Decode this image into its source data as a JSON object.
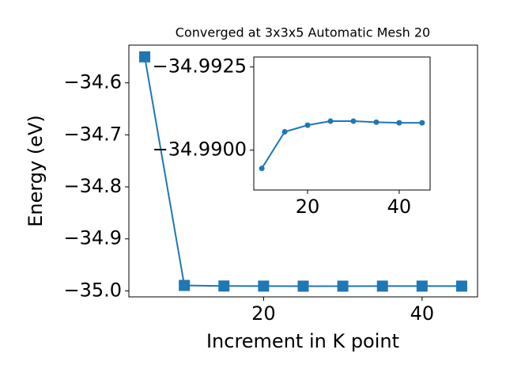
{
  "chart_data": [
    {
      "type": "line",
      "title": "Converged at 3x3x5 Automatic Mesh 20",
      "xlabel": "Increment in K point",
      "ylabel": "Energy (eV)",
      "x": [
        5,
        10,
        15,
        20,
        25,
        30,
        35,
        40,
        45
      ],
      "values": [
        -34.55,
        -34.9895,
        -34.9906,
        -34.9908,
        -34.9909,
        -34.9909,
        -34.9908,
        -34.9908,
        -34.9908
      ],
      "color": "#1f77b4",
      "marker": "square",
      "xlim": [
        3,
        47
      ],
      "xticks": [
        20,
        40
      ],
      "ylim": [
        -35.0115,
        -34.5275
      ],
      "yticks": [
        {
          "value": -34.6,
          "label": "−34.6"
        },
        {
          "value": -34.7,
          "label": "−34.7"
        },
        {
          "value": -34.8,
          "label": "−34.8"
        },
        {
          "value": -34.9,
          "label": "−34.9"
        },
        {
          "value": -35.0,
          "label": "−35.0"
        }
      ]
    },
    {
      "type": "line",
      "x": [
        10,
        15,
        20,
        25,
        30,
        35,
        40,
        45
      ],
      "values": [
        -34.98945,
        -34.99055,
        -34.99075,
        -34.99087,
        -34.99087,
        -34.99084,
        -34.99082,
        -34.99082
      ],
      "color": "#1f77b4",
      "marker": "circle",
      "xlim": [
        8.25,
        46.75
      ],
      "xticks": [
        20,
        40
      ],
      "ylim": [
        -34.9888,
        -34.9928
      ],
      "yticks": [
        {
          "value": -34.9925,
          "label": "−34.9925"
        },
        {
          "value": -34.99,
          "label": "−34.9900"
        }
      ]
    }
  ]
}
